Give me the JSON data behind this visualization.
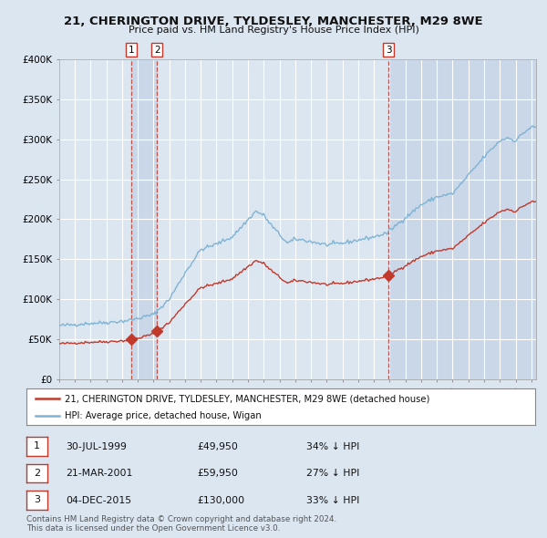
{
  "title": "21, CHERINGTON DRIVE, TYLDESLEY, MANCHESTER, M29 8WE",
  "subtitle": "Price paid vs. HM Land Registry's House Price Index (HPI)",
  "legend_red": "21, CHERINGTON DRIVE, TYLDESLEY, MANCHESTER, M29 8WE (detached house)",
  "legend_blue": "HPI: Average price, detached house, Wigan",
  "footer1": "Contains HM Land Registry data © Crown copyright and database right 2024.",
  "footer2": "This data is licensed under the Open Government Licence v3.0.",
  "transactions": [
    {
      "num": 1,
      "date": "30-JUL-1999",
      "price": 49950,
      "price_str": "£49,950",
      "hpi_diff": "34% ↓ HPI",
      "year": 1999.57
    },
    {
      "num": 2,
      "date": "21-MAR-2001",
      "price": 59950,
      "price_str": "£59,950",
      "hpi_diff": "27% ↓ HPI",
      "year": 2001.22
    },
    {
      "num": 3,
      "date": "04-DEC-2015",
      "price": 130000,
      "price_str": "£130,000",
      "hpi_diff": "33% ↓ HPI",
      "year": 2015.92
    }
  ],
  "ylim": [
    0,
    400000
  ],
  "xlim_start": 1995.0,
  "xlim_end": 2025.3,
  "bg_color": "#dce6f1",
  "plot_bg_color": "#dce6f1",
  "grid_color": "#ffffff",
  "red_color": "#c0392b",
  "blue_color": "#7fb3d3",
  "shade_color": "#c6d5e8"
}
